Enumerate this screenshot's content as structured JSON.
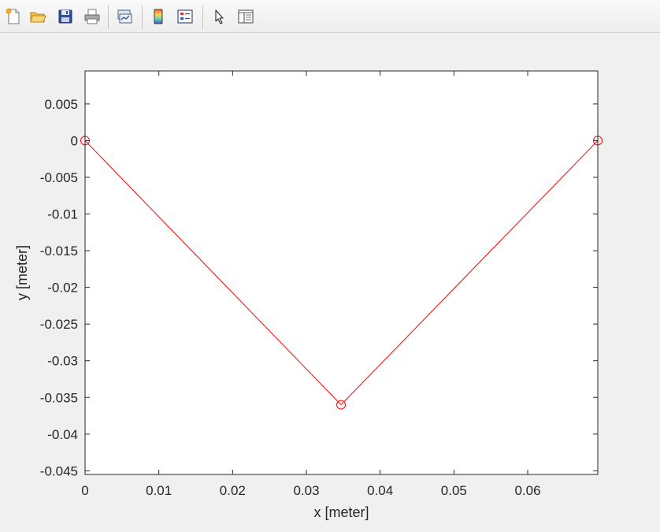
{
  "toolbar": {
    "buttons": [
      {
        "name": "new-figure-icon"
      },
      {
        "name": "open-file-icon"
      },
      {
        "name": "save-icon"
      },
      {
        "name": "print-icon"
      },
      {
        "name": "link-plot-icon"
      },
      {
        "name": "colorbar-icon"
      },
      {
        "name": "legend-icon"
      },
      {
        "name": "pointer-icon"
      },
      {
        "name": "property-inspector-icon"
      }
    ]
  },
  "chart_data": {
    "type": "line",
    "title": "",
    "xlabel": "x [meter]",
    "ylabel": "y [meter]",
    "xlim": [
      0,
      0.0695
    ],
    "ylim": [
      -0.0455,
      0.0095
    ],
    "xticks": [
      0,
      0.01,
      0.02,
      0.03,
      0.04,
      0.05,
      0.06
    ],
    "xtick_labels": [
      "0",
      "0.01",
      "0.02",
      "0.03",
      "0.04",
      "0.05",
      "0.06"
    ],
    "yticks": [
      0.005,
      0,
      -0.005,
      -0.01,
      -0.015,
      -0.02,
      -0.025,
      -0.03,
      -0.035,
      -0.04,
      -0.045
    ],
    "ytick_labels": [
      "0.005",
      "0",
      "-0.005",
      "-0.01",
      "-0.015",
      "-0.02",
      "-0.025",
      "-0.03",
      "-0.035",
      "-0.04",
      "-0.045"
    ],
    "grid": false,
    "series": [
      {
        "x": [
          0,
          0.0347,
          0.0695
        ],
        "y": [
          0,
          -0.036,
          0
        ],
        "color": "#ff0000",
        "marker": "circle"
      }
    ]
  }
}
